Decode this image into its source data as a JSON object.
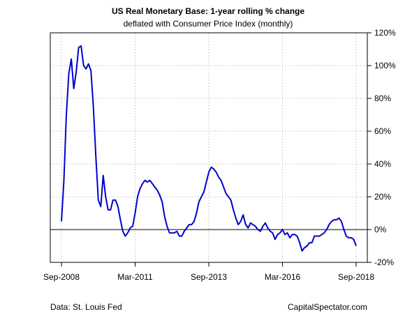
{
  "chart_data": {
    "type": "line",
    "title": "US Real Monetary Base: 1-year rolling % change",
    "subtitle": "deflated with Consumer Price Index (monthly)",
    "xlabel": "",
    "ylabel": "",
    "x_ticks": [
      "Sep-2008",
      "Mar-2011",
      "Sep-2013",
      "Mar-2016",
      "Sep-2018"
    ],
    "x_tick_dates": [
      "2008-09",
      "2011-03",
      "2013-09",
      "2016-03",
      "2018-09"
    ],
    "y_ticks": [
      "-20%",
      "0%",
      "20%",
      "40%",
      "60%",
      "80%",
      "100%",
      "120%"
    ],
    "y_tick_values": [
      -20,
      0,
      20,
      40,
      60,
      80,
      100,
      120
    ],
    "ylim": [
      -20,
      120
    ],
    "xlim": [
      "2008-09",
      "2018-09"
    ],
    "grid": true,
    "reference_line": 0,
    "series": [
      {
        "color": "#0000cc",
        "x": [
          "2008-09",
          "2008-10",
          "2008-11",
          "2008-12",
          "2009-01",
          "2009-02",
          "2009-03",
          "2009-04",
          "2009-05",
          "2009-06",
          "2009-07",
          "2009-08",
          "2009-09",
          "2009-10",
          "2009-11",
          "2009-12",
          "2010-01",
          "2010-02",
          "2010-03",
          "2010-04",
          "2010-05",
          "2010-06",
          "2010-07",
          "2010-08",
          "2010-09",
          "2010-10",
          "2010-11",
          "2010-12",
          "2011-01",
          "2011-02",
          "2011-03",
          "2011-04",
          "2011-05",
          "2011-06",
          "2011-07",
          "2011-08",
          "2011-09",
          "2011-10",
          "2011-11",
          "2011-12",
          "2012-01",
          "2012-02",
          "2012-03",
          "2012-04",
          "2012-05",
          "2012-06",
          "2012-07",
          "2012-08",
          "2012-09",
          "2012-10",
          "2012-11",
          "2012-12",
          "2013-01",
          "2013-02",
          "2013-03",
          "2013-04",
          "2013-05",
          "2013-06",
          "2013-07",
          "2013-08",
          "2013-09",
          "2013-10",
          "2013-11",
          "2013-12",
          "2014-01",
          "2014-02",
          "2014-03",
          "2014-04",
          "2014-05",
          "2014-06",
          "2014-07",
          "2014-08",
          "2014-09",
          "2014-10",
          "2014-11",
          "2014-12",
          "2015-01",
          "2015-02",
          "2015-03",
          "2015-04",
          "2015-05",
          "2015-06",
          "2015-07",
          "2015-08",
          "2015-09",
          "2015-10",
          "2015-11",
          "2015-12",
          "2016-01",
          "2016-02",
          "2016-03",
          "2016-04",
          "2016-05",
          "2016-06",
          "2016-07",
          "2016-08",
          "2016-09",
          "2016-10",
          "2016-11",
          "2016-12",
          "2017-01",
          "2017-02",
          "2017-03",
          "2017-04",
          "2017-05",
          "2017-06",
          "2017-07",
          "2017-08",
          "2017-09",
          "2017-10",
          "2017-11",
          "2017-12",
          "2018-01",
          "2018-02",
          "2018-03",
          "2018-04",
          "2018-05",
          "2018-06",
          "2018-07",
          "2018-08",
          "2018-09"
        ],
        "y": [
          5,
          30,
          70,
          95,
          104,
          86,
          96,
          111,
          112,
          100,
          98,
          101,
          97,
          75,
          45,
          18,
          14,
          33,
          20,
          12,
          12,
          18,
          18,
          14,
          6,
          -1,
          -4,
          -2,
          1,
          2,
          10,
          20,
          25,
          28,
          30,
          29,
          30,
          28,
          26,
          24,
          21,
          17,
          8,
          2,
          -2,
          -2,
          -2,
          -1,
          -4,
          -4,
          -1,
          1,
          3,
          3,
          5,
          10,
          17,
          20,
          23,
          29,
          35,
          38,
          37,
          35,
          32,
          30,
          26,
          22,
          20,
          18,
          12,
          7,
          3,
          5,
          9,
          3,
          1,
          4,
          3,
          2,
          0,
          -1,
          2,
          4,
          1,
          -1,
          -2,
          -6,
          -3,
          -2,
          0,
          -3,
          -2,
          -5,
          -3,
          -3,
          -4,
          -8,
          -13,
          -11,
          -10,
          -8,
          -8,
          -4,
          -4,
          -4,
          -3,
          -2,
          0,
          3,
          5,
          6,
          6,
          7,
          5,
          0,
          -4,
          -5,
          -5,
          -6,
          -10
        ]
      }
    ]
  },
  "footer": {
    "source": "Data: St. Louis Fed",
    "brand": "CapitalSpectator.com"
  },
  "colors": {
    "line": "#0000cc",
    "grid": "#aaaaaa",
    "axis": "#000000"
  }
}
